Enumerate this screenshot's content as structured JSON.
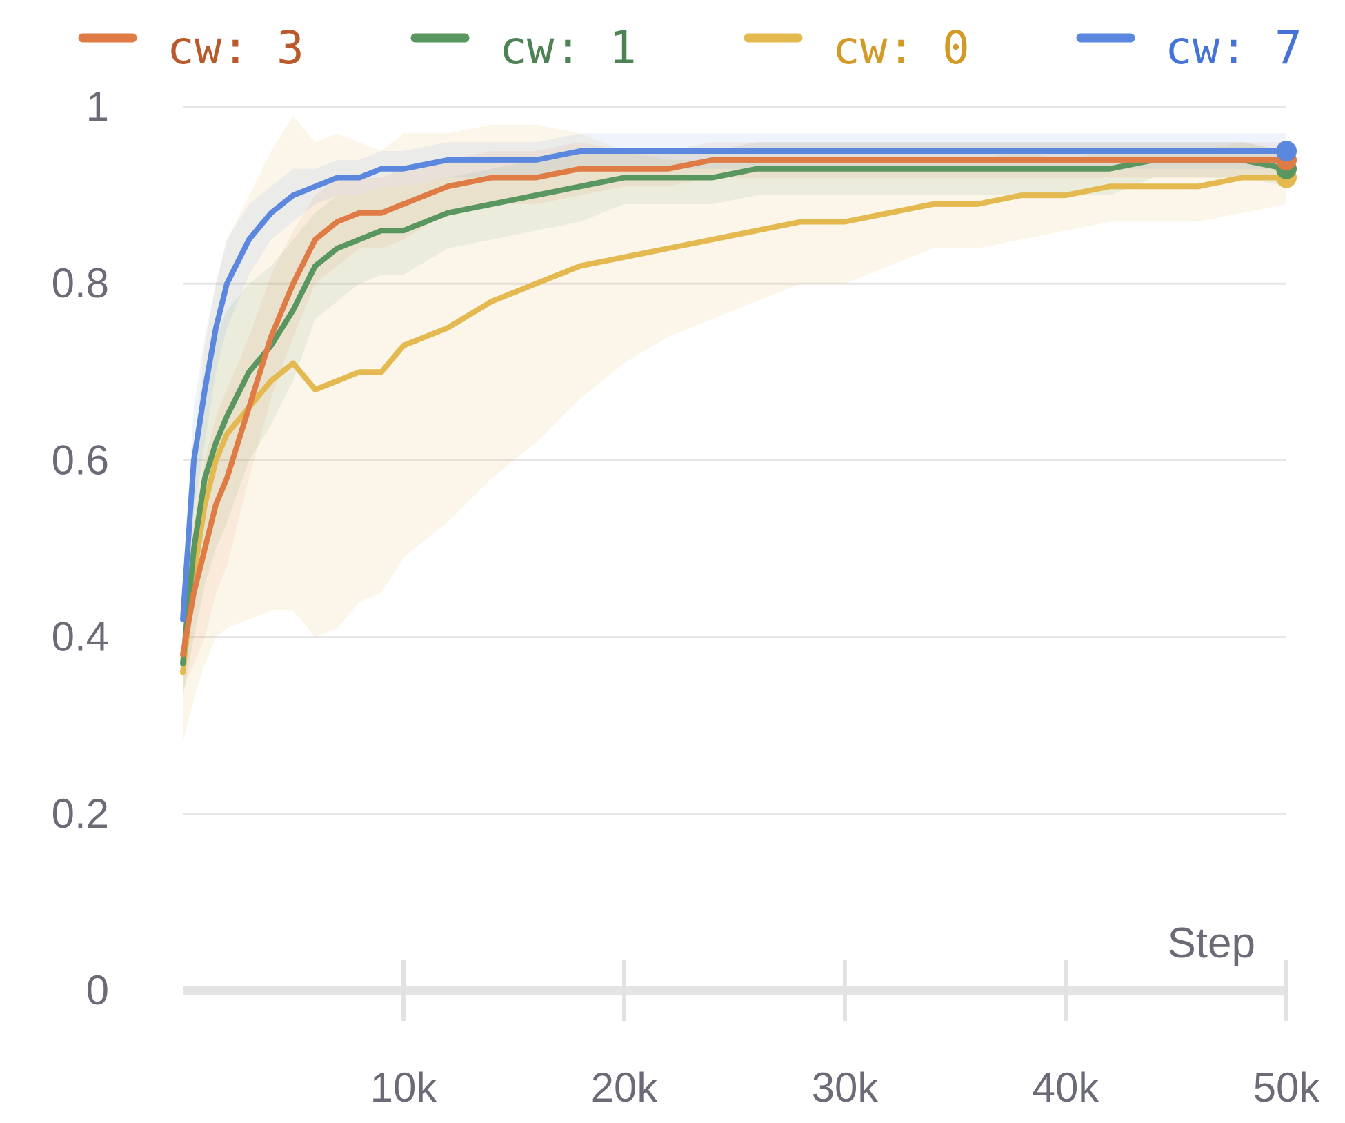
{
  "chart_data": {
    "type": "line",
    "xlabel": "Step",
    "ylabel": "",
    "xlim": [
      0,
      50000
    ],
    "ylim": [
      0,
      1
    ],
    "x_ticks": [
      10000,
      20000,
      30000,
      40000,
      50000
    ],
    "x_tick_labels": [
      "10k",
      "20k",
      "30k",
      "40k",
      "50k"
    ],
    "y_ticks": [
      0,
      0.2,
      0.4,
      0.6,
      0.8,
      1
    ],
    "y_tick_labels": [
      "0",
      "0.2",
      "0.4",
      "0.6",
      "0.8",
      "1"
    ],
    "grid": true,
    "legend_position": "top",
    "x": [
      0,
      500,
      1000,
      1500,
      2000,
      3000,
      4000,
      5000,
      6000,
      7000,
      8000,
      9000,
      10000,
      12000,
      14000,
      16000,
      18000,
      20000,
      22000,
      24000,
      26000,
      28000,
      30000,
      32000,
      34000,
      36000,
      38000,
      40000,
      42000,
      44000,
      46000,
      48000,
      50000
    ],
    "series": [
      {
        "name": "cw: 3",
        "color": "#df7b45",
        "label_color": "#b85a2c",
        "values": [
          0.38,
          0.45,
          0.5,
          0.55,
          0.58,
          0.66,
          0.74,
          0.8,
          0.85,
          0.87,
          0.88,
          0.88,
          0.89,
          0.91,
          0.92,
          0.92,
          0.93,
          0.93,
          0.93,
          0.94,
          0.94,
          0.94,
          0.94,
          0.94,
          0.94,
          0.94,
          0.94,
          0.94,
          0.94,
          0.94,
          0.94,
          0.94,
          0.94
        ],
        "band": [
          0.04,
          0.08,
          0.1,
          0.1,
          0.1,
          0.08,
          0.07,
          0.06,
          0.05,
          0.05,
          0.04,
          0.04,
          0.04,
          0.03,
          0.03,
          0.03,
          0.03,
          0.02,
          0.02,
          0.02,
          0.02,
          0.02,
          0.02,
          0.02,
          0.02,
          0.02,
          0.02,
          0.02,
          0.02,
          0.02,
          0.02,
          0.02,
          0.02
        ]
      },
      {
        "name": "cw: 1",
        "color": "#5a9660",
        "label_color": "#4d8255",
        "values": [
          0.37,
          0.5,
          0.58,
          0.62,
          0.65,
          0.7,
          0.73,
          0.77,
          0.82,
          0.84,
          0.85,
          0.86,
          0.86,
          0.88,
          0.89,
          0.9,
          0.91,
          0.92,
          0.92,
          0.92,
          0.93,
          0.93,
          0.93,
          0.93,
          0.93,
          0.93,
          0.93,
          0.93,
          0.93,
          0.94,
          0.94,
          0.94,
          0.93
        ],
        "band": [
          0.04,
          0.1,
          0.12,
          0.12,
          0.12,
          0.1,
          0.09,
          0.08,
          0.06,
          0.06,
          0.05,
          0.05,
          0.05,
          0.04,
          0.04,
          0.04,
          0.04,
          0.03,
          0.03,
          0.03,
          0.03,
          0.03,
          0.03,
          0.03,
          0.03,
          0.03,
          0.03,
          0.03,
          0.03,
          0.02,
          0.02,
          0.02,
          0.02
        ]
      },
      {
        "name": "cw: 0",
        "color": "#e4b94f",
        "label_color": "#d39a28",
        "values": [
          0.36,
          0.47,
          0.55,
          0.6,
          0.63,
          0.66,
          0.69,
          0.71,
          0.68,
          0.69,
          0.7,
          0.7,
          0.73,
          0.75,
          0.78,
          0.8,
          0.82,
          0.83,
          0.84,
          0.85,
          0.86,
          0.87,
          0.87,
          0.88,
          0.89,
          0.89,
          0.9,
          0.9,
          0.91,
          0.91,
          0.91,
          0.92,
          0.92
        ],
        "band": [
          0.08,
          0.14,
          0.18,
          0.2,
          0.22,
          0.24,
          0.26,
          0.28,
          0.28,
          0.28,
          0.26,
          0.25,
          0.24,
          0.22,
          0.2,
          0.18,
          0.15,
          0.12,
          0.1,
          0.09,
          0.08,
          0.07,
          0.07,
          0.06,
          0.05,
          0.05,
          0.05,
          0.04,
          0.04,
          0.04,
          0.04,
          0.04,
          0.03
        ]
      },
      {
        "name": "cw: 7",
        "color": "#5b87de",
        "label_color": "#4673d6",
        "values": [
          0.42,
          0.6,
          0.68,
          0.75,
          0.8,
          0.85,
          0.88,
          0.9,
          0.91,
          0.92,
          0.92,
          0.93,
          0.93,
          0.94,
          0.94,
          0.94,
          0.95,
          0.95,
          0.95,
          0.95,
          0.95,
          0.95,
          0.95,
          0.95,
          0.95,
          0.95,
          0.95,
          0.95,
          0.95,
          0.95,
          0.95,
          0.95,
          0.95
        ],
        "band": [
          0.04,
          0.06,
          0.06,
          0.05,
          0.05,
          0.04,
          0.03,
          0.03,
          0.02,
          0.02,
          0.02,
          0.02,
          0.02,
          0.02,
          0.02,
          0.02,
          0.02,
          0.02,
          0.02,
          0.02,
          0.02,
          0.02,
          0.02,
          0.02,
          0.02,
          0.02,
          0.02,
          0.02,
          0.02,
          0.02,
          0.02,
          0.02,
          0.02
        ]
      }
    ]
  }
}
